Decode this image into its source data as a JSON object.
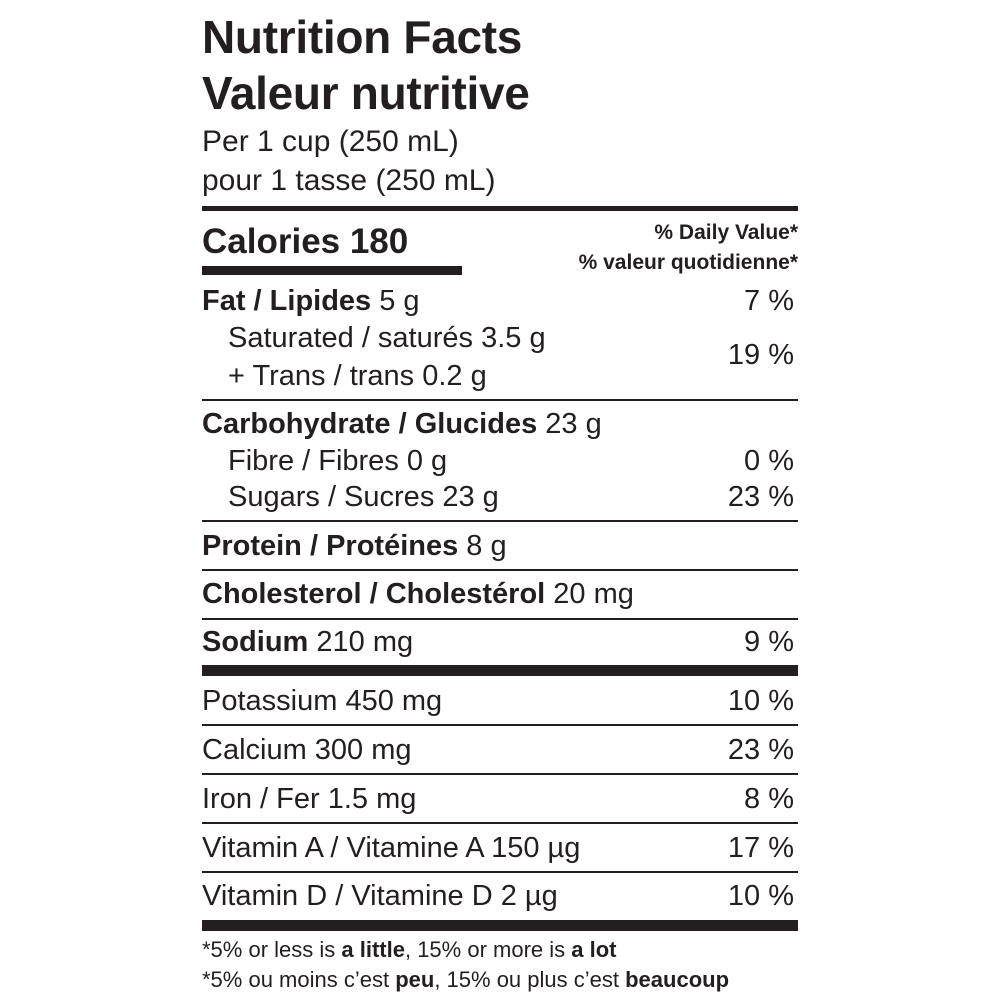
{
  "label": {
    "title_en": "Nutrition Facts",
    "title_fr": "Valeur nutritive",
    "serving_en": "Per 1 cup (250 mL)",
    "serving_fr": "pour 1 tasse (250 mL)",
    "calories_label": "Calories 180",
    "dv_header_en": "% Daily Value*",
    "dv_header_fr": "% valeur quotidienne*"
  },
  "nutrients": {
    "fat": {
      "name": "Fat / Lipides",
      "amount": "5 g",
      "dv": "7 %"
    },
    "saturated": {
      "name": "Saturated / saturés 3.5 g"
    },
    "trans": {
      "name": "+ Trans / trans 0.2 g"
    },
    "sat_trans_dv": "19 %",
    "carbohydrate": {
      "name": "Carbohydrate / Glucides",
      "amount": "23 g"
    },
    "fibre": {
      "name": "Fibre / Fibres 0 g",
      "dv": "0 %"
    },
    "sugars": {
      "name": "Sugars / Sucres 23 g",
      "dv": "23 %"
    },
    "protein": {
      "name": "Protein / Protéines",
      "amount": "8 g"
    },
    "cholesterol": {
      "name": "Cholesterol / Cholestérol",
      "amount": "20 mg"
    },
    "sodium": {
      "name": "Sodium",
      "amount": "210 mg",
      "dv": "9 %"
    }
  },
  "micronutrients": [
    {
      "name": "Potassium 450 mg",
      "dv": "10 %"
    },
    {
      "name": "Calcium 300 mg",
      "dv": "23 %"
    },
    {
      "name": "Iron / Fer 1.5 mg",
      "dv": "8 %"
    },
    {
      "name": "Vitamin A / Vitamine A 150 µg",
      "dv": "17 %"
    },
    {
      "name": "Vitamin D / Vitamine D 2 µg",
      "dv": "10 %"
    }
  ],
  "footnote": {
    "en": {
      "prefix": "*5% or less is ",
      "low": "a little",
      "middle": ", 15% or more is ",
      "high": "a lot"
    },
    "fr": {
      "prefix": "*5% ou moins c’est ",
      "low": "peu",
      "middle": ", 15% ou plus c’est ",
      "high": "beaucoup"
    }
  }
}
